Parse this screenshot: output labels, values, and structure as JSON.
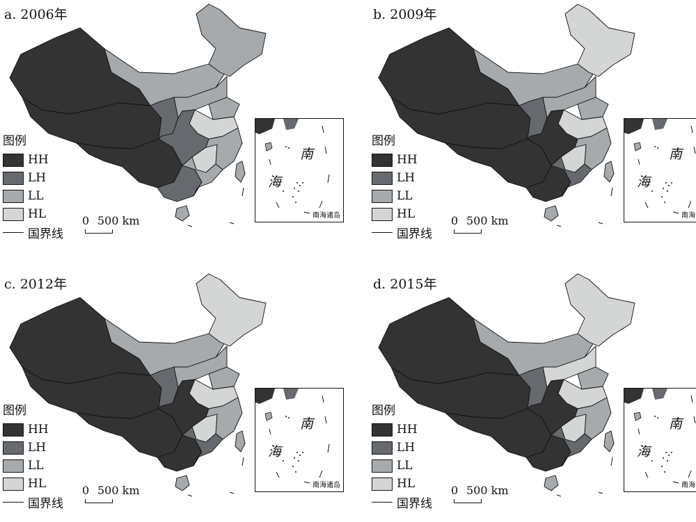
{
  "colors": {
    "HH": "#333333",
    "LH": "#666a6e",
    "LL": "#a6aaad",
    "HL": "#d4d6d6",
    "border": "#111111"
  },
  "legend": {
    "title": "图例",
    "items": [
      {
        "code": "HH",
        "label": "HH"
      },
      {
        "code": "LH",
        "label": "LH"
      },
      {
        "code": "LL",
        "label": "LL"
      },
      {
        "code": "HL",
        "label": "HL"
      }
    ],
    "border_label": "国界线"
  },
  "scale_bar": {
    "zero": "0",
    "value": "500 km"
  },
  "inset": {
    "sea_char_1": "南",
    "sea_char_2": "海",
    "caption": "南海诸岛"
  },
  "panels": [
    {
      "title": "a. 2006年",
      "regions": {
        "west": "HH",
        "qinghai_tibet": "HH",
        "southwest": "HH",
        "guangxi": "LH",
        "hainan": "LL",
        "north_band": "LL",
        "northeast": "LL",
        "north_china": "LL",
        "shaanxi_shanxi": "LH",
        "central": "LH",
        "jiangxi": "HL",
        "anhui_jiangsu": "HL",
        "shandong": "LL",
        "east_coast": "LL",
        "guangdong": "LL",
        "taiwan": "LL"
      }
    },
    {
      "title": "b. 2009年",
      "regions": {
        "west": "HH",
        "qinghai_tibet": "HH",
        "southwest": "HH",
        "guangxi": "HH",
        "hainan": "LL",
        "north_band": "LL",
        "northeast": "HL",
        "north_china": "LL",
        "shaanxi_shanxi": "LH",
        "central": "HH",
        "jiangxi": "HL",
        "anhui_jiangsu": "HL",
        "shandong": "LL",
        "east_coast": "LL",
        "guangdong": "LH",
        "taiwan": "LL"
      }
    },
    {
      "title": "c. 2012年",
      "regions": {
        "west": "HH",
        "qinghai_tibet": "HH",
        "southwest": "HH",
        "guangxi": "HH",
        "hainan": "LL",
        "north_band": "LL",
        "northeast": "HL",
        "north_china": "LL",
        "shaanxi_shanxi": "LH",
        "central": "HH",
        "jiangxi": "HL",
        "anhui_jiangsu": "HL",
        "shandong": "LL",
        "east_coast": "LL",
        "guangdong": "LH",
        "taiwan": "LL"
      }
    },
    {
      "title": "d. 2015年",
      "regions": {
        "west": "HH",
        "qinghai_tibet": "HH",
        "southwest": "HH",
        "guangxi": "HH",
        "hainan": "LL",
        "north_band": "LL",
        "northeast": "HL",
        "north_china": "HL",
        "shaanxi_shanxi": "LH",
        "central": "HH",
        "jiangxi": "HL",
        "anhui_jiangsu": "HL",
        "shandong": "LL",
        "east_coast": "LL",
        "guangdong": "LH",
        "taiwan": "LL"
      }
    }
  ]
}
